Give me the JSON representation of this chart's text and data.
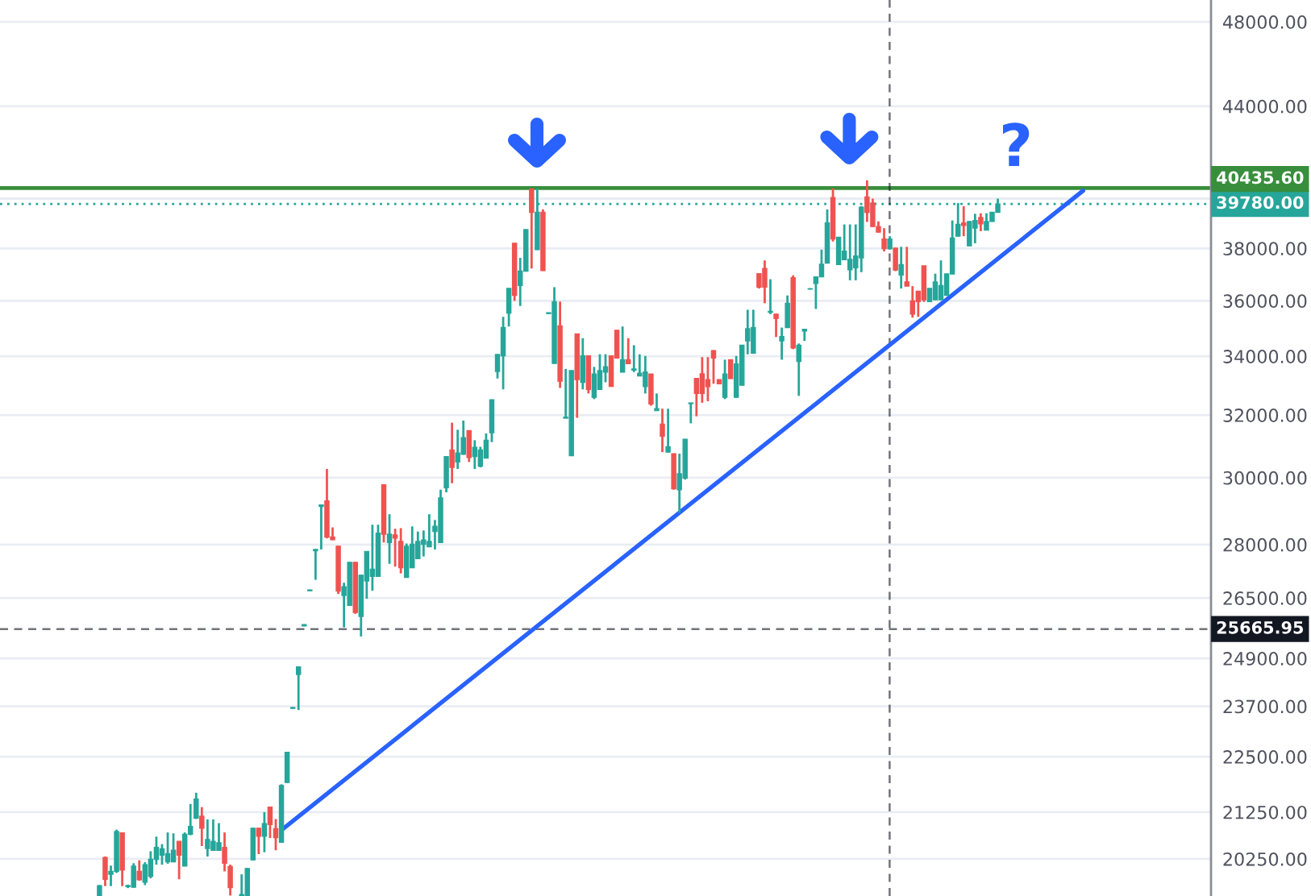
{
  "chart_data": {
    "type": "candlestick",
    "log": true,
    "grid": "y",
    "tick_labels": "y",
    "ylim": [
      19490,
      49090
    ],
    "yticks": [
      {
        "value": 48000,
        "label": "48000.00"
      },
      {
        "value": 44000,
        "label": "44000.00"
      },
      {
        "value": 40000,
        "label": null
      },
      {
        "value": 38000,
        "label": "38000.00"
      },
      {
        "value": 36000,
        "label": "36000.00"
      },
      {
        "value": 34000,
        "label": "34000.00"
      },
      {
        "value": 32000,
        "label": "32000.00"
      },
      {
        "value": 30000,
        "label": "30000.00"
      },
      {
        "value": 28000,
        "label": "28000.00"
      },
      {
        "value": 26500,
        "label": "26500.00"
      },
      {
        "value": 24900,
        "label": "24900.00"
      },
      {
        "value": 23700,
        "label": "23700.00"
      },
      {
        "value": 22500,
        "label": "22500.00"
      },
      {
        "value": 21250,
        "label": "21250.00"
      },
      {
        "value": 20250,
        "label": "20250.00"
      }
    ],
    "categories": [
      null,
      null,
      null,
      null,
      null,
      null,
      null,
      null,
      null,
      null,
      null,
      null,
      null,
      null,
      null,
      null,
      null,
      null,
      null,
      null,
      null,
      null,
      null,
      null,
      null,
      null,
      null,
      null,
      null,
      null,
      null,
      null,
      null,
      null,
      null,
      null,
      null,
      null,
      null,
      null,
      null,
      null,
      null,
      null,
      null,
      null,
      null,
      null,
      null,
      null,
      null,
      null,
      null,
      null,
      null,
      null,
      null,
      null,
      null,
      null,
      null,
      null,
      null,
      null,
      null,
      null,
      null,
      null,
      null,
      null,
      null,
      null,
      null,
      null,
      null,
      null,
      null,
      null,
      null,
      null,
      null,
      null,
      null,
      null,
      null,
      null,
      null,
      null,
      null,
      null,
      null,
      null,
      null,
      null,
      null,
      null,
      null,
      null,
      null,
      null,
      null,
      null,
      null,
      null,
      null,
      null,
      null,
      null,
      null,
      null,
      null,
      null,
      null,
      null,
      null,
      null,
      null,
      null,
      null,
      null,
      null,
      null,
      null,
      null,
      null,
      null,
      null,
      null,
      null,
      null,
      null,
      null,
      null,
      null,
      null,
      null,
      null,
      null,
      null,
      null,
      null,
      null,
      null,
      null,
      null,
      null,
      null,
      null,
      null,
      null,
      null,
      null,
      null,
      null,
      null,
      null,
      null,
      null,
      null,
      null,
      null,
      null,
      null,
      null,
      null,
      null,
      null,
      null,
      null,
      null,
      null,
      null,
      null,
      null,
      null,
      null,
      null,
      null,
      null,
      null,
      null,
      null,
      null,
      null,
      null,
      null,
      null,
      null,
      null,
      null,
      null,
      null,
      null,
      null,
      null,
      null,
      null,
      null,
      null,
      null,
      null,
      null,
      null,
      null,
      null,
      null,
      null,
      null,
      null,
      null,
      null,
      null,
      null
    ],
    "ohlc": [
      null,
      null,
      null,
      null,
      null,
      null,
      null,
      null,
      null,
      null,
      null,
      null,
      null,
      null,
      null,
      null,
      null,
      [
        19500,
        19710,
        19500,
        19700
      ],
      [
        20280,
        20300,
        19690,
        19830
      ],
      [
        19930,
        20110,
        19690,
        19990
      ],
      [
        19990,
        20870,
        19960,
        20830
      ],
      [
        20800,
        20810,
        19690,
        20020
      ],
      [
        19680,
        19720,
        19650,
        19700
      ],
      [
        19670,
        20160,
        19660,
        20100
      ],
      [
        19990,
        20220,
        19800,
        19820
      ],
      [
        19770,
        20180,
        19710,
        20130
      ],
      [
        19890,
        20410,
        19850,
        20240
      ],
      [
        20240,
        20720,
        20130,
        20490
      ],
      [
        20330,
        20560,
        20130,
        20460
      ],
      [
        20190,
        20810,
        20150,
        20360
      ],
      [
        20190,
        20790,
        20180,
        20430
      ],
      [
        20620,
        20620,
        19830,
        20330
      ],
      [
        20100,
        20810,
        20100,
        20770
      ],
      [
        20770,
        21430,
        20750,
        20940
      ],
      [
        21120,
        21680,
        21100,
        21540
      ],
      [
        21160,
        21360,
        20520,
        20900
      ],
      [
        20470,
        21090,
        20300,
        20660
      ],
      [
        20430,
        21090,
        20430,
        20620
      ],
      [
        20430,
        21010,
        20430,
        20590
      ],
      [
        20490,
        20810,
        19990,
        20160
      ],
      [
        20090,
        20130,
        19500,
        19660
      ],
      null,
      [
        19500,
        19930,
        19500,
        19520
      ],
      [
        19500,
        20060,
        19500,
        20050
      ],
      [
        20230,
        20910,
        20220,
        20900
      ],
      [
        20900,
        20910,
        20350,
        20730
      ],
      [
        20730,
        21250,
        20390,
        21000
      ],
      [
        21360,
        21370,
        20690,
        20980
      ],
      [
        20890,
        21100,
        20430,
        20700
      ],
      [
        20600,
        21870,
        20600,
        21840
      ],
      [
        21910,
        22610,
        21900,
        22600
      ],
      [
        23650,
        23680,
        23640,
        23670
      ],
      [
        24490,
        24690,
        23610,
        24680
      ],
      [
        25750,
        25790,
        25740,
        25780
      ],
      [
        26700,
        26730,
        26690,
        26720
      ],
      [
        27820,
        27870,
        27000,
        27860
      ],
      [
        29120,
        29180,
        27860,
        29170
      ],
      [
        29290,
        30270,
        28180,
        28220
      ],
      [
        28220,
        28500,
        28130,
        28140
      ],
      [
        27950,
        27960,
        26610,
        26690
      ],
      [
        26570,
        26920,
        25710,
        26810
      ],
      [
        26300,
        27500,
        26290,
        27490
      ],
      [
        27490,
        27500,
        26070,
        26110
      ],
      [
        26000,
        27140,
        25470,
        27130
      ],
      [
        26970,
        27810,
        26480,
        27800
      ],
      [
        27100,
        28580,
        26700,
        27300
      ],
      [
        27100,
        28580,
        27090,
        28330
      ],
      [
        29780,
        29790,
        28060,
        28300
      ],
      [
        28060,
        28890,
        27450,
        28300
      ],
      [
        28280,
        28460,
        27370,
        28190
      ],
      [
        28090,
        28480,
        27180,
        27340
      ],
      [
        27070,
        28030,
        27060,
        27950
      ],
      [
        27340,
        28530,
        27330,
        28010
      ],
      [
        27600,
        28380,
        27590,
        28090
      ],
      [
        28010,
        28410,
        27660,
        28130
      ],
      [
        27940,
        28890,
        27930,
        28090
      ],
      [
        28380,
        28720,
        27860,
        28530
      ],
      [
        28060,
        29630,
        28050,
        29380
      ],
      [
        29690,
        30670,
        29550,
        30660
      ],
      [
        30870,
        31750,
        29830,
        30320
      ],
      [
        30490,
        31520,
        30270,
        30770
      ],
      [
        30730,
        31820,
        30720,
        31260
      ],
      [
        31490,
        31500,
        30490,
        30630
      ],
      [
        30660,
        31180,
        30270,
        30950
      ],
      [
        30360,
        30970,
        30320,
        30870
      ],
      [
        30610,
        31400,
        30600,
        31180
      ],
      [
        31420,
        32520,
        31120,
        32510
      ],
      [
        33470,
        34070,
        33230,
        34060
      ],
      [
        34020,
        35410,
        32860,
        35020
      ],
      [
        35550,
        36470,
        35060,
        36460
      ],
      [
        38200,
        38210,
        36000,
        36200
      ],
      [
        36570,
        37630,
        35810,
        37120
      ],
      [
        37120,
        38750,
        37110,
        38740
      ],
      [
        40400,
        40420,
        37220,
        39440
      ],
      [
        37950,
        40430,
        37940,
        39440
      ],
      [
        39440,
        39560,
        37130,
        37140
      ],
      [
        35530,
        35560,
        35520,
        35560
      ],
      [
        33750,
        36510,
        33740,
        35970
      ],
      [
        35080,
        35970,
        32910,
        33140
      ],
      [
        31900,
        33560,
        31890,
        31930
      ],
      [
        30690,
        33510,
        30680,
        33500
      ],
      [
        34790,
        34800,
        31910,
        33190
      ],
      [
        33100,
        34640,
        32860,
        34010
      ],
      [
        34010,
        34020,
        32720,
        32860
      ],
      [
        32590,
        33630,
        32530,
        33380
      ],
      [
        32860,
        34070,
        32850,
        33500
      ],
      [
        33450,
        34070,
        33100,
        33630
      ],
      [
        34010,
        34020,
        32950,
        32960
      ],
      [
        34920,
        34930,
        33930,
        33940
      ],
      [
        33450,
        35060,
        33440,
        33880
      ],
      [
        33880,
        34640,
        33730,
        33740
      ],
      [
        33520,
        34390,
        33450,
        33560
      ],
      [
        33320,
        34070,
        33310,
        33410
      ],
      [
        32950,
        34010,
        32720,
        33450
      ],
      [
        33380,
        33390,
        32310,
        32370
      ],
      [
        32150,
        32720,
        32140,
        32210
      ],
      [
        31700,
        32210,
        30800,
        31310
      ],
      [
        30800,
        32210,
        30790,
        30970
      ],
      [
        30750,
        30760,
        29630,
        29660
      ],
      [
        29630,
        30750,
        28930,
        30120
      ],
      [
        29990,
        31220,
        29940,
        31210
      ],
      [
        32380,
        32410,
        31730,
        32400
      ],
      [
        33230,
        33240,
        31960,
        32720
      ],
      [
        33390,
        33970,
        32410,
        32720
      ],
      [
        33190,
        33970,
        32460,
        32950
      ],
      [
        34200,
        34210,
        33050,
        33940
      ],
      [
        33190,
        33200,
        33040,
        33050
      ],
      [
        32590,
        33880,
        32530,
        33380
      ],
      [
        33880,
        33890,
        33220,
        33230
      ],
      [
        32590,
        34010,
        32580,
        33730
      ],
      [
        33000,
        34400,
        32990,
        34390
      ],
      [
        34540,
        35670,
        34070,
        34980
      ],
      [
        34110,
        35670,
        34100,
        35020
      ],
      [
        37020,
        37030,
        36460,
        36510
      ],
      [
        37220,
        37530,
        35910,
        36510
      ],
      [
        35580,
        36810,
        35510,
        35610
      ],
      [
        35510,
        35520,
        34680,
        35350
      ],
      [
        34540,
        35020,
        33880,
        34700
      ],
      [
        35020,
        36200,
        35010,
        35910
      ],
      [
        36870,
        36960,
        34250,
        34290
      ],
      [
        33820,
        34450,
        32640,
        34390
      ],
      [
        34900,
        34970,
        34540,
        34960
      ],
      [
        36440,
        36470,
        36420,
        36450
      ],
      [
        36650,
        36910,
        35700,
        36900
      ],
      [
        36900,
        37950,
        36890,
        37380
      ],
      [
        37430,
        39560,
        37420,
        39010
      ],
      [
        40040,
        40430,
        38270,
        38370
      ],
      [
        37370,
        38450,
        37360,
        38440
      ],
      [
        37560,
        38950,
        37550,
        37890
      ],
      [
        37170,
        38950,
        36770,
        37570
      ],
      [
        37250,
        38950,
        36770,
        37700
      ],
      [
        37630,
        39690,
        37080,
        39650
      ],
      [
        40070,
        40760,
        39050,
        39440
      ],
      [
        39820,
        40000,
        38850,
        38870
      ],
      [
        38860,
        39070,
        38630,
        38640
      ],
      [
        38370,
        38800,
        37880,
        37990
      ],
      [
        37990,
        38480,
        37950,
        38370
      ],
      [
        38010,
        38020,
        37120,
        37160
      ],
      [
        36970,
        38060,
        36460,
        37370
      ],
      [
        36710,
        38060,
        36540,
        36550
      ],
      [
        36000,
        36550,
        35380,
        35510
      ],
      [
        36360,
        36370,
        35410,
        35970
      ],
      [
        37320,
        37330,
        35960,
        36040
      ],
      [
        35970,
        36470,
        35960,
        36460
      ],
      [
        36040,
        37020,
        36030,
        36710
      ],
      [
        36040,
        37530,
        36030,
        36570
      ],
      [
        36200,
        37020,
        36190,
        37010
      ],
      [
        37010,
        39110,
        37000,
        38410
      ],
      [
        38480,
        39820,
        38470,
        38950
      ],
      [
        39010,
        39690,
        38480,
        38910
      ],
      [
        38100,
        39080,
        38090,
        39070
      ],
      [
        38800,
        39380,
        38200,
        39110
      ],
      [
        39230,
        39400,
        38680,
        38970
      ],
      [
        38720,
        39400,
        38710,
        39070
      ],
      [
        39070,
        39450,
        39060,
        39440
      ],
      [
        39440,
        40000,
        39430,
        39780
      ],
      null,
      null,
      null,
      null,
      null,
      null,
      null,
      null,
      null,
      null,
      null,
      null,
      null,
      null,
      null,
      null,
      null,
      null,
      null,
      null,
      null,
      null,
      null,
      null,
      null,
      null,
      null,
      null,
      null,
      null,
      null,
      null,
      null,
      null,
      null,
      null,
      null
    ],
    "colors": [
      null,
      null,
      null,
      null,
      null,
      null,
      null,
      null,
      null,
      null,
      null,
      null,
      null,
      null,
      null,
      null,
      null,
      "#26a69a",
      "#ef5350",
      "#26a69a",
      "#26a69a",
      "#ef5350",
      "#26a69a",
      "#26a69a",
      "#ef5350",
      "#26a69a",
      "#26a69a",
      "#26a69a",
      "#26a69a",
      "#26a69a",
      "#26a69a",
      "#ef5350",
      "#26a69a",
      "#26a69a",
      "#26a69a",
      "#ef5350",
      "#26a69a",
      "#26a69a",
      "#26a69a",
      "#ef5350",
      "#ef5350",
      null,
      "#26a69a",
      "#26a69a",
      "#26a69a",
      "#ef5350",
      "#26a69a",
      "#ef5350",
      "#ef5350",
      "#26a69a",
      "#26a69a",
      "#26a69a",
      "#26a69a",
      "#26a69a",
      "#26a69a",
      "#26a69a",
      "#26a69a",
      "#ef5350",
      "#ef5350",
      "#ef5350",
      "#26a69a",
      "#26a69a",
      "#ef5350",
      "#26a69a",
      "#26a69a",
      "#26a69a",
      "#26a69a",
      "#ef5350",
      "#26a69a",
      "#ef5350",
      "#ef5350",
      "#26a69a",
      "#26a69a",
      "#26a69a",
      "#26a69a",
      "#26a69a",
      "#26a69a",
      "#26a69a",
      "#26a69a",
      "#ef5350",
      "#26a69a",
      "#26a69a",
      "#ef5350",
      "#26a69a",
      "#26a69a",
      "#26a69a",
      "#26a69a",
      "#26a69a",
      "#26a69a",
      "#26a69a",
      "#ef5350",
      "#26a69a",
      "#26a69a",
      "#ef5350",
      "#26a69a",
      "#ef5350",
      "#26a69a",
      "#26a69a",
      "#ef5350",
      "#26a69a",
      "#26a69a",
      "#ef5350",
      "#26a69a",
      "#ef5350",
      "#26a69a",
      "#26a69a",
      "#26a69a",
      "#ef5350",
      "#ef5350",
      "#26a69a",
      "#ef5350",
      "#26a69a",
      "#26a69a",
      "#26a69a",
      "#ef5350",
      "#26a69a",
      "#ef5350",
      "#26a69a",
      "#ef5350",
      "#26a69a",
      "#26a69a",
      "#26a69a",
      "#ef5350",
      "#ef5350",
      "#ef5350",
      "#ef5350",
      "#ef5350",
      "#26a69a",
      "#ef5350",
      "#26a69a",
      "#26a69a",
      "#26a69a",
      "#26a69a",
      "#ef5350",
      "#ef5350",
      "#26a69a",
      "#ef5350",
      "#26a69a",
      "#26a69a",
      "#ef5350",
      "#26a69a",
      "#26a69a",
      "#26a69a",
      "#26a69a",
      "#26a69a",
      "#26a69a",
      "#ef5350",
      "#26a69a",
      "#26a69a",
      "#26a69a",
      "#26a69a",
      "#26a69a",
      "#ef5350",
      "#ef5350",
      "#ef5350",
      "#ef5350",
      "#26a69a",
      "#ef5350",
      "#26a69a",
      "#ef5350",
      "#ef5350",
      "#ef5350",
      "#ef5350",
      "#26a69a",
      "#26a69a",
      "#26a69a",
      "#26a69a",
      "#26a69a",
      "#26a69a",
      "#ef5350",
      "#26a69a",
      "#26a69a",
      "#ef5350",
      "#26a69a",
      "#26a69a",
      "#26a69a",
      null,
      null,
      null,
      null,
      null,
      null,
      null,
      null,
      null,
      null,
      null,
      null,
      null,
      null,
      null,
      null,
      null,
      null,
      null,
      null,
      null,
      null,
      null,
      null,
      null,
      null,
      null,
      null,
      null,
      null,
      null,
      null,
      null,
      null,
      null,
      null,
      null
    ],
    "series": [
      {
        "type": "line",
        "color": "#2962ff",
        "values": [
          null,
          null,
          null,
          null,
          null,
          null,
          null,
          null,
          null,
          null,
          null,
          null,
          null,
          null,
          null,
          null,
          null,
          null,
          null,
          null,
          null,
          null,
          null,
          null,
          null,
          null,
          null,
          null,
          null,
          null,
          null,
          null,
          null,
          null,
          null,
          null,
          null,
          null,
          null,
          null,
          null,
          null,
          null,
          null,
          null,
          null,
          null,
          null,
          null,
          20860,
          null,
          null,
          null,
          null,
          null,
          null,
          null,
          null,
          null,
          null,
          null,
          null,
          null,
          null,
          null,
          null,
          null,
          null,
          null,
          null,
          null,
          null,
          null,
          null,
          null,
          null,
          null,
          null,
          null,
          null,
          null,
          null,
          null,
          null,
          null,
          null,
          null,
          null,
          null,
          null,
          null,
          null,
          null,
          null,
          null,
          null,
          null,
          null,
          null,
          null,
          null,
          null,
          null,
          null,
          null,
          null,
          null,
          null,
          null,
          null,
          null,
          null,
          null,
          null,
          null,
          null,
          null,
          null,
          null,
          null,
          null,
          null,
          null,
          null,
          null,
          null,
          null,
          null,
          null,
          null,
          null,
          null,
          null,
          null,
          null,
          null,
          null,
          null,
          null,
          null,
          null,
          null,
          null,
          null,
          null,
          null,
          null,
          null,
          null,
          null,
          null,
          null,
          null,
          null,
          null,
          null,
          null,
          null,
          null,
          null,
          null,
          null,
          null,
          null,
          null,
          null,
          null,
          null,
          null,
          null,
          null,
          null,
          null,
          null,
          null,
          null,
          null,
          null,
          null,
          null,
          null,
          null,
          null,
          null,
          null,
          null,
          null,
          null,
          null,
          null,
          40330,
          null,
          null,
          null,
          null,
          null,
          null,
          null,
          null,
          null,
          null,
          null,
          null,
          null,
          null,
          null,
          null,
          null,
          null,
          null,
          null,
          null,
          null
        ]
      }
    ],
    "ref_lines": [
      {
        "axis": "y",
        "value": 40435.6,
        "label": "40435.60",
        "color": "#388e3c",
        "line_style": "solid"
      },
      {
        "axis": "y",
        "value": 39780,
        "label": "39780.00",
        "color": "#26a69a",
        "line_style": "dotted"
      },
      {
        "axis": "y",
        "value": 25665.95,
        "label": "25665.95",
        "color": "#131722",
        "line_style": "dashed"
      }
    ],
    "annotations": [
      "?"
    ]
  }
}
